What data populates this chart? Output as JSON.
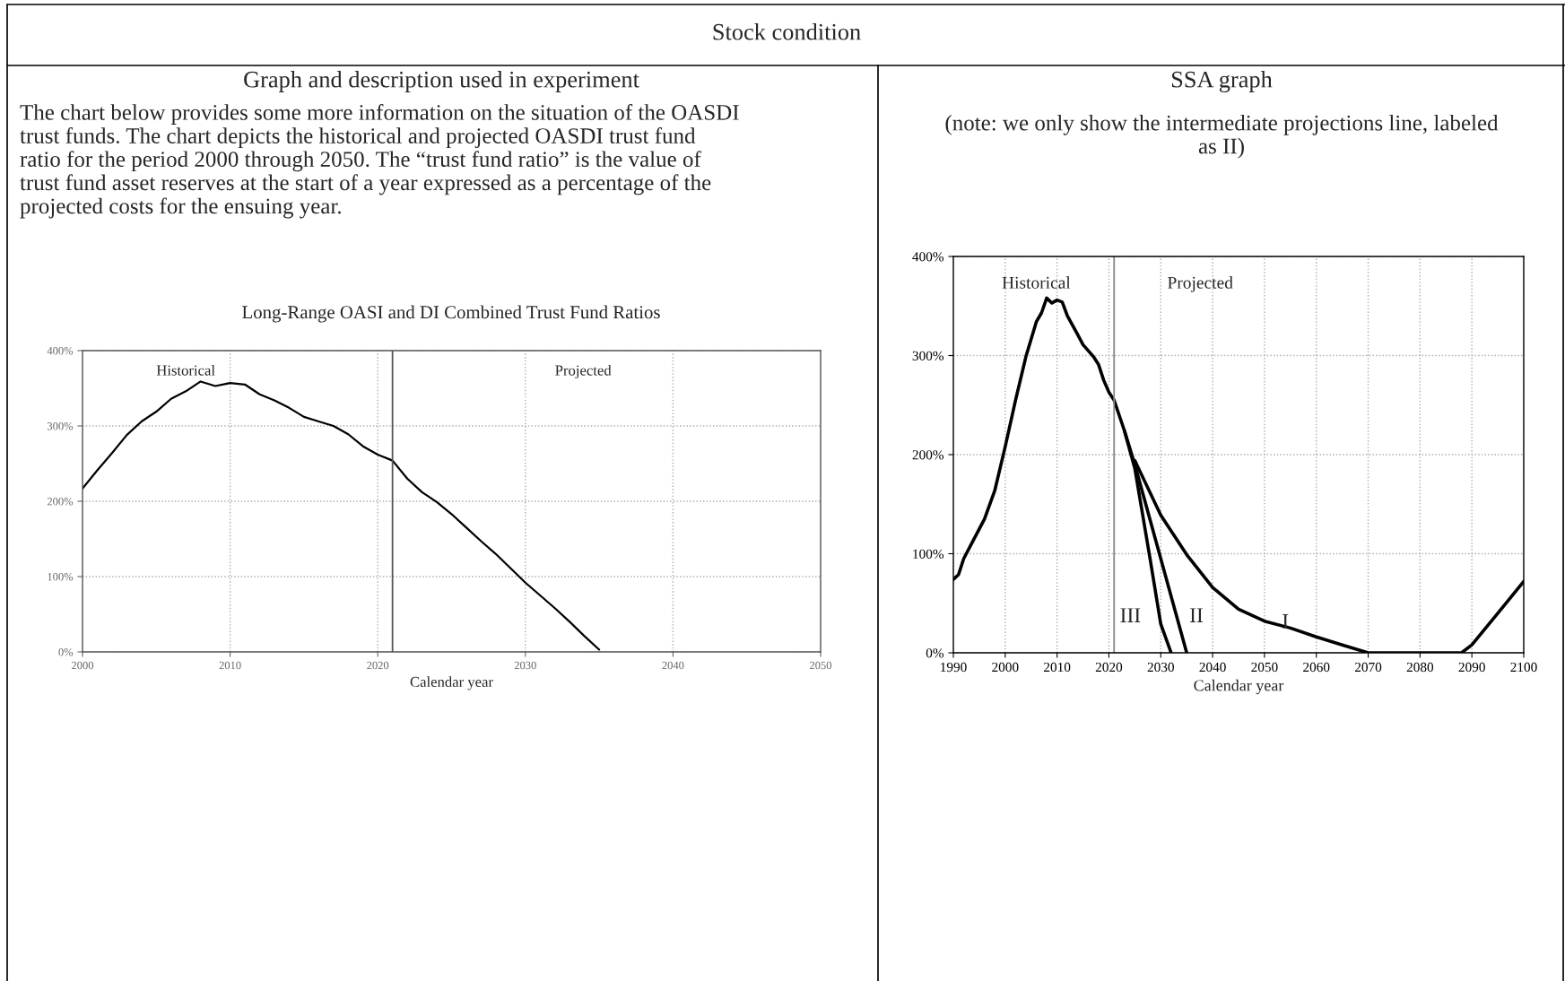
{
  "chart_data": [
    {
      "type": "line",
      "title": "Long-Range OASI and DI Combined Trust Fund Ratios",
      "xlabel": "Calendar year",
      "annotations": [
        "Stock condition",
        "Graph and description used in experiment",
        "The chart below provides some more information on the situation of the OASDI\ntrust funds. The chart depicts the historical and projected OASDI trust fund\nratio for the period 2000 through 2050. The “trust fund ratio” is the value of\ntrust fund asset reserves at the start of a year expressed as a percentage of the\nprojected costs for the ensuing year.",
        "Historical",
        "Projected"
      ],
      "series": [
        {
          "color": "#000000",
          "x": [
            2000,
            2001,
            2002,
            2003,
            2004,
            2005,
            2006,
            2007,
            2008,
            2009,
            2010,
            2011,
            2012,
            2013,
            2014,
            2015,
            2016,
            2017,
            2018,
            2019,
            2020,
            2021,
            2022,
            2023,
            2024,
            2025,
            2026,
            2027,
            2028,
            2029,
            2030,
            2031,
            2032,
            2033,
            2034,
            2035
          ],
          "values": [
            217,
            241,
            264,
            288,
            306,
            319,
            336,
            346,
            359,
            353,
            357,
            355,
            342,
            334,
            324,
            312,
            306,
            300,
            289,
            273,
            262,
            254,
            230,
            212,
            199,
            183,
            165,
            147,
            130,
            111,
            92,
            75,
            58,
            40,
            21,
            3
          ]
        }
      ],
      "xlim": [
        2000,
        2050
      ],
      "xticks": [
        2000,
        2010,
        2020,
        2030,
        2040,
        2050
      ],
      "ylim": [
        0,
        400
      ],
      "yticks": [
        {
          "value": 0,
          "label": "0%"
        },
        {
          "value": 100,
          "label": "100%"
        },
        {
          "value": 200,
          "label": "200%"
        },
        {
          "value": 300,
          "label": "300%"
        },
        {
          "value": 400,
          "label": "400%"
        }
      ],
      "ref_lines": [
        {
          "axis": "x",
          "value": 2021,
          "color": "#555555"
        }
      ],
      "grid": true,
      "line_style": "solid",
      "marker": "none"
    },
    {
      "type": "line",
      "title": "SSA graph",
      "subtitle": "(note: we only show the intermediate projections line, labeled\nas II)",
      "xlabel": "Calendar year",
      "annotations": [
        "Historical",
        "Projected"
      ],
      "series": [
        {
          "name": "III",
          "color": "#000000",
          "x": [
            2023,
            2025,
            2028,
            2030,
            2032
          ],
          "values": [
            224,
            186,
            93,
            29,
            0
          ]
        },
        {
          "name": "II",
          "color": "#000000",
          "x": [
            1990,
            1991,
            1992,
            1994,
            1996,
            1998,
            2000,
            2002,
            2004,
            2006,
            2007,
            2008,
            2009,
            2010,
            2011,
            2012,
            2014,
            2015,
            2017,
            2018,
            2019,
            2020,
            2021,
            2023,
            2025,
            2030,
            2035
          ],
          "values": [
            74,
            79,
            95,
            115,
            135,
            164,
            208,
            255,
            299,
            334,
            343,
            358,
            353,
            356,
            354,
            340,
            321,
            311,
            299,
            291,
            275,
            263,
            255,
            224,
            190,
            95,
            0
          ]
        },
        {
          "name": "I",
          "color": "#000000",
          "x": [
            2025,
            2030,
            2035,
            2040,
            2045,
            2050,
            2055,
            2060,
            2065,
            2070,
            2088,
            2090,
            2095,
            2100
          ],
          "values": [
            194,
            139,
            99,
            66,
            44,
            32,
            25,
            16,
            8,
            0,
            0,
            8,
            40,
            72
          ]
        }
      ],
      "xlim": [
        1990,
        2100
      ],
      "xticks": [
        1990,
        2000,
        2010,
        2020,
        2030,
        2040,
        2050,
        2060,
        2070,
        2080,
        2090,
        2100
      ],
      "ylim": [
        0,
        400
      ],
      "yticks": [
        {
          "value": 0,
          "label": "0%"
        },
        {
          "value": 100,
          "label": "100%"
        },
        {
          "value": 200,
          "label": "200%"
        },
        {
          "value": 300,
          "label": "300%"
        },
        {
          "value": 400,
          "label": "400%"
        }
      ],
      "ref_lines": [
        {
          "axis": "x",
          "value": 2021,
          "color": "#888888"
        }
      ],
      "grid": true,
      "line_style": "solid",
      "marker": "none"
    }
  ]
}
